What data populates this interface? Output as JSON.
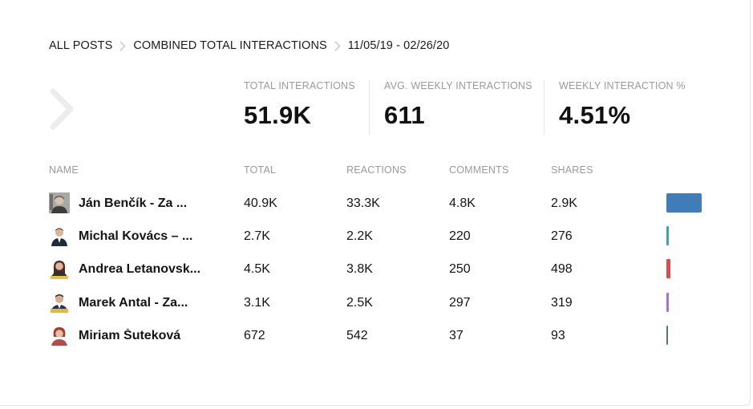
{
  "breadcrumb": {
    "items": [
      "ALL POSTS",
      "COMBINED TOTAL INTERACTIONS",
      "11/05/19 - 02/26/20"
    ]
  },
  "stats": [
    {
      "label": "TOTAL INTERACTIONS",
      "value": "51.9K"
    },
    {
      "label": "AVG. WEEKLY INTERACTIONS",
      "value": "611"
    },
    {
      "label": "WEEKLY INTERACTION %",
      "value": "4.51%"
    }
  ],
  "table": {
    "headers": {
      "name": "NAME",
      "total": "TOTAL",
      "reactions": "REACTIONS",
      "comments": "COMMENTS",
      "shares": "SHARES"
    },
    "rows": [
      {
        "name": "Ján Benčík - Za ...",
        "total": "40.9K",
        "reactions": "33.3K",
        "comments": "4.8K",
        "shares": "2.9K",
        "bar_color": "#3f7cb8",
        "bar_fraction": 1.0
      },
      {
        "name": "Michal Kovács – ...",
        "total": "2.7K",
        "reactions": "2.2K",
        "comments": "220",
        "shares": "276",
        "bar_color": "#3aa89a",
        "bar_fraction": 0.066
      },
      {
        "name": "Andrea Letanovsk...",
        "total": "4.5K",
        "reactions": "3.8K",
        "comments": "250",
        "shares": "498",
        "bar_color": "#e24848",
        "bar_fraction": 0.11
      },
      {
        "name": "Marek Antal - Za...",
        "total": "3.1K",
        "reactions": "2.5K",
        "comments": "297",
        "shares": "319",
        "bar_color": "#a86ee6",
        "bar_fraction": 0.076
      },
      {
        "name": "Miriam Šuteková",
        "total": "672",
        "reactions": "542",
        "comments": "37",
        "shares": "93",
        "bar_color": "#5a6f8a",
        "bar_fraction": 0.016
      }
    ]
  },
  "icons": {
    "breadcrumb_separator": "chevron-right-icon",
    "back": "chevron-right-icon"
  }
}
